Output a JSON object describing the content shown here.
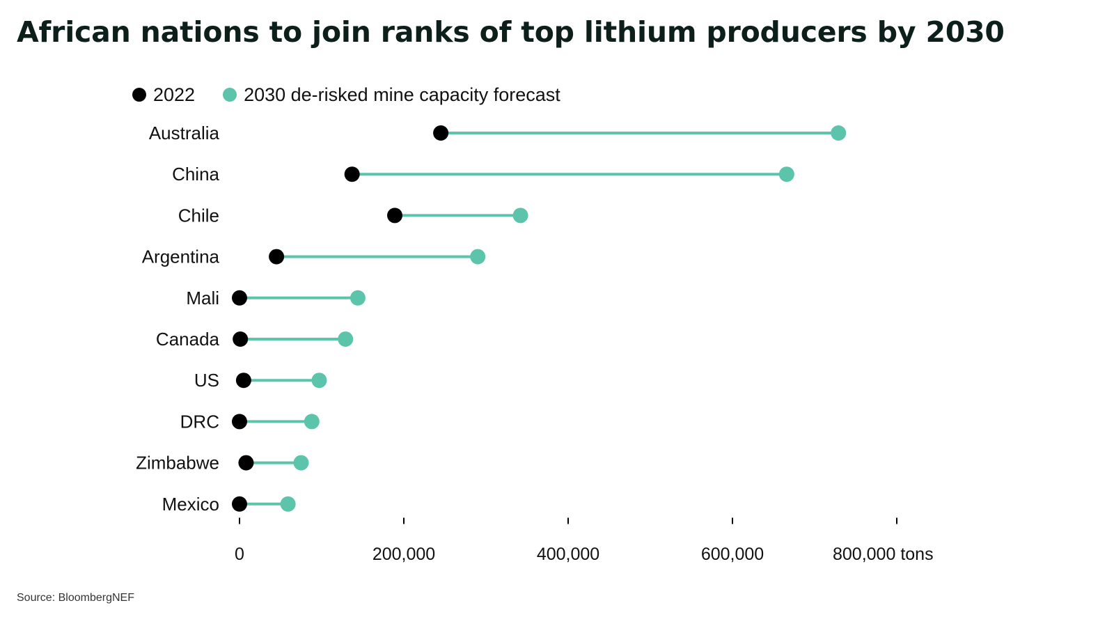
{
  "title": "African nations to join ranks of top lithium producers by 2030",
  "source": "Source: BloombergNEF",
  "colors": {
    "dot_2022": "#000000",
    "dot_2030": "#5cc4ab",
    "connector": "#5cc4ab",
    "title": "#0d1f1a"
  },
  "chart_data": {
    "type": "scatter",
    "title": "African nations to join ranks of top lithium producers by 2030",
    "xlabel": "",
    "ylabel": "",
    "x_unit": "tons",
    "xlim": [
      0,
      800000
    ],
    "x_ticks": [
      0,
      200000,
      400000,
      600000,
      800000
    ],
    "x_tick_labels": [
      "0",
      "200,000",
      "400,000",
      "600,000",
      "800,000 tons"
    ],
    "legend_position": "top-left",
    "grid": false,
    "categories": [
      "Australia",
      "China",
      "Chile",
      "Argentina",
      "Mali",
      "Canada",
      "US",
      "DRC",
      "Zimbabwe",
      "Mexico"
    ],
    "series": [
      {
        "name": "2022",
        "color": "#000000",
        "values": [
          245000,
          137000,
          189000,
          45000,
          0,
          1000,
          5000,
          0,
          8000,
          0
        ]
      },
      {
        "name": "2030 de-risked mine capacity forecast",
        "color": "#5cc4ab",
        "values": [
          729000,
          666000,
          342000,
          290000,
          144000,
          129000,
          97000,
          88000,
          75000,
          59000
        ]
      }
    ]
  }
}
